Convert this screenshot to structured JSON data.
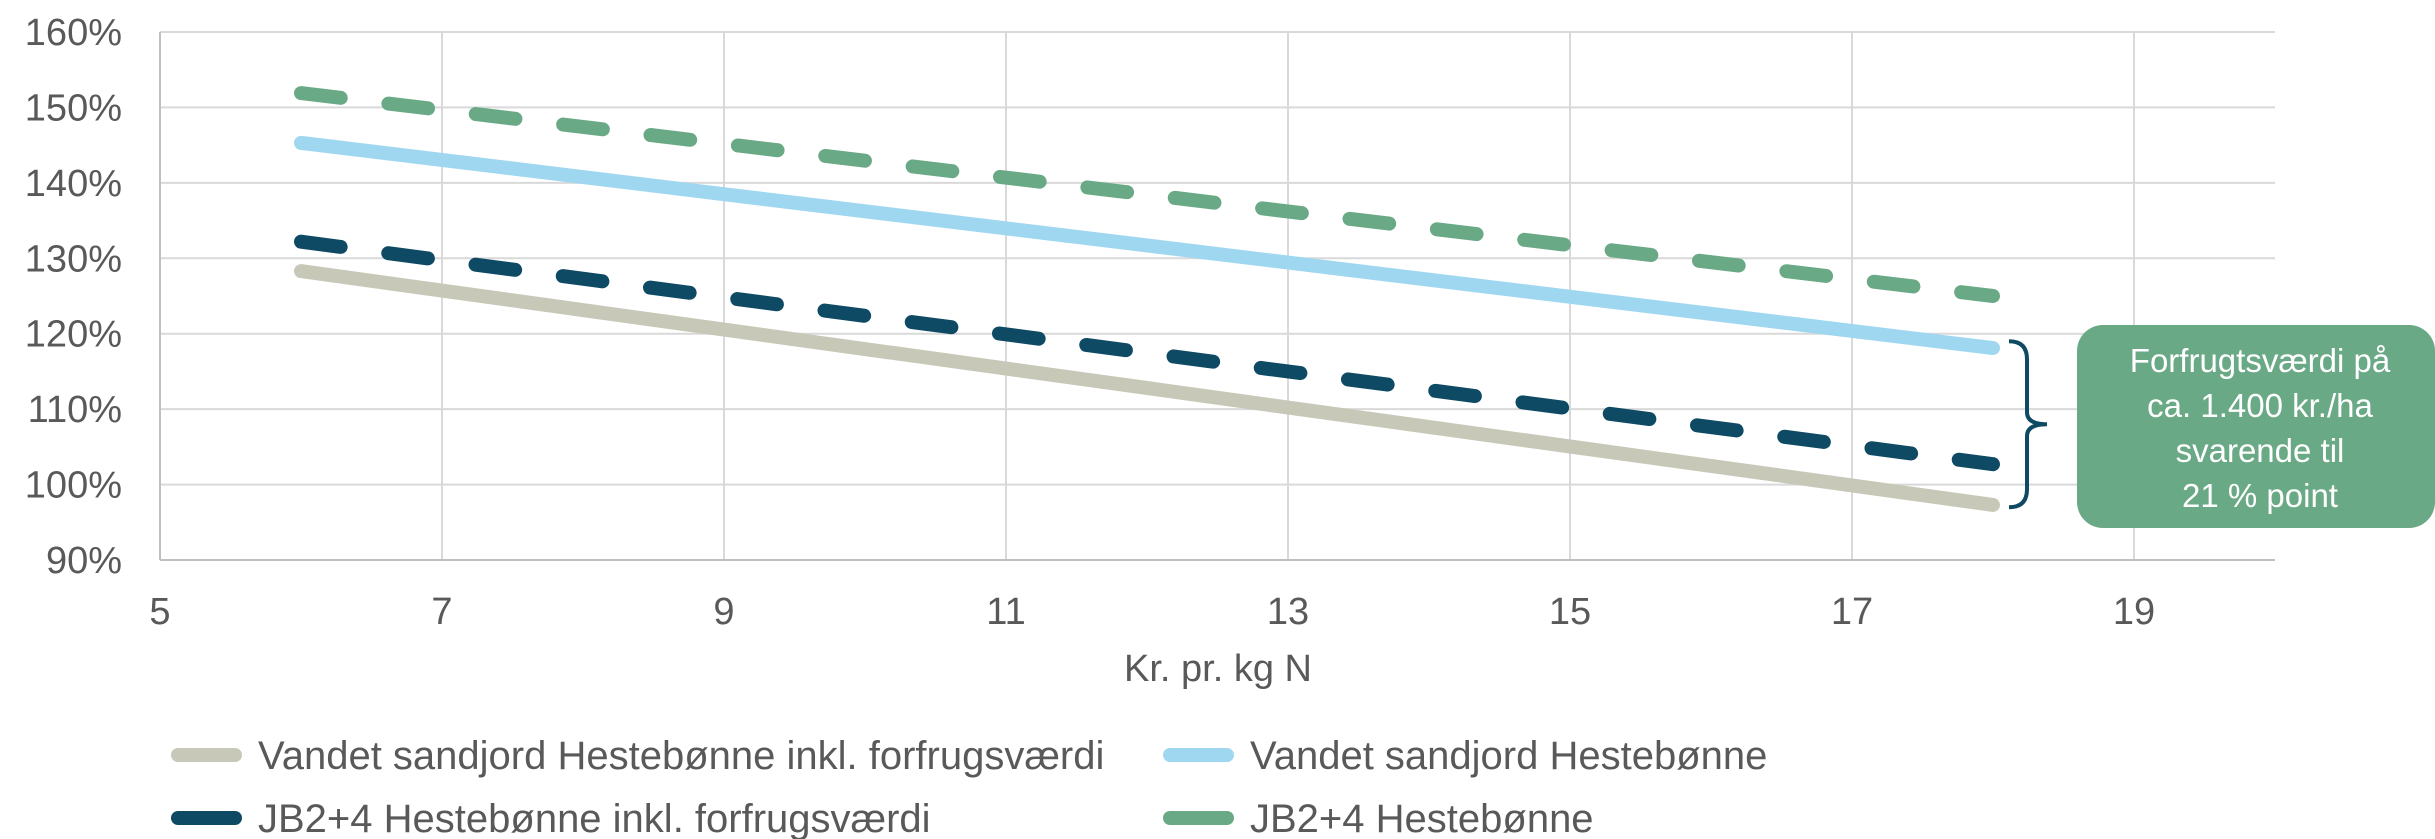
{
  "chart_data": {
    "type": "line",
    "title": "",
    "xlabel": "Kr. pr. kg N",
    "ylabel": "",
    "xlim": [
      5,
      20
    ],
    "ylim": [
      0.9,
      1.6
    ],
    "x_ticks": [
      5,
      7,
      9,
      11,
      13,
      15,
      17,
      19
    ],
    "y_ticks": [
      0.9,
      1.0,
      1.1,
      1.2,
      1.3,
      1.4,
      1.5,
      1.6
    ],
    "y_tick_labels": [
      "90%",
      "100%",
      "110%",
      "120%",
      "130%",
      "140%",
      "150%",
      "160%"
    ],
    "x_tick_labels": [
      "5",
      "7",
      "9",
      "11",
      "13",
      "15",
      "17",
      "19"
    ],
    "grid": true,
    "legend_position": "bottom",
    "series": [
      {
        "name": "Vandet sandjord Hestebønne inkl. forfrugsværdi",
        "color": "#c8c8b8",
        "style": "solid",
        "x": [
          6,
          18
        ],
        "values": [
          1.283,
          0.973
        ]
      },
      {
        "name": "Vandet sandjord Hestebønne",
        "color": "#9fd7f1",
        "style": "solid",
        "x": [
          6,
          18
        ],
        "values": [
          1.453,
          1.181
        ]
      },
      {
        "name": "JB2+4 Hestebønne inkl. forfrugsværdi",
        "color": "#0e4a63",
        "style": "dashed",
        "x": [
          6,
          18
        ],
        "values": [
          1.322,
          1.027
        ]
      },
      {
        "name": "JB2+4 Hestebønne",
        "color": "#6aa986",
        "style": "dashed",
        "x": [
          6,
          18
        ],
        "values": [
          1.519,
          1.25
        ]
      }
    ],
    "annotation": {
      "lines": [
        "Forfrugtsværdi på",
        "ca. 1.400 kr./ha",
        "svarende til",
        "21 % point"
      ],
      "box_color": "#6aa986",
      "bracket_color": "#0e4a63",
      "bracket_range": [
        0.97,
        1.19
      ]
    }
  }
}
